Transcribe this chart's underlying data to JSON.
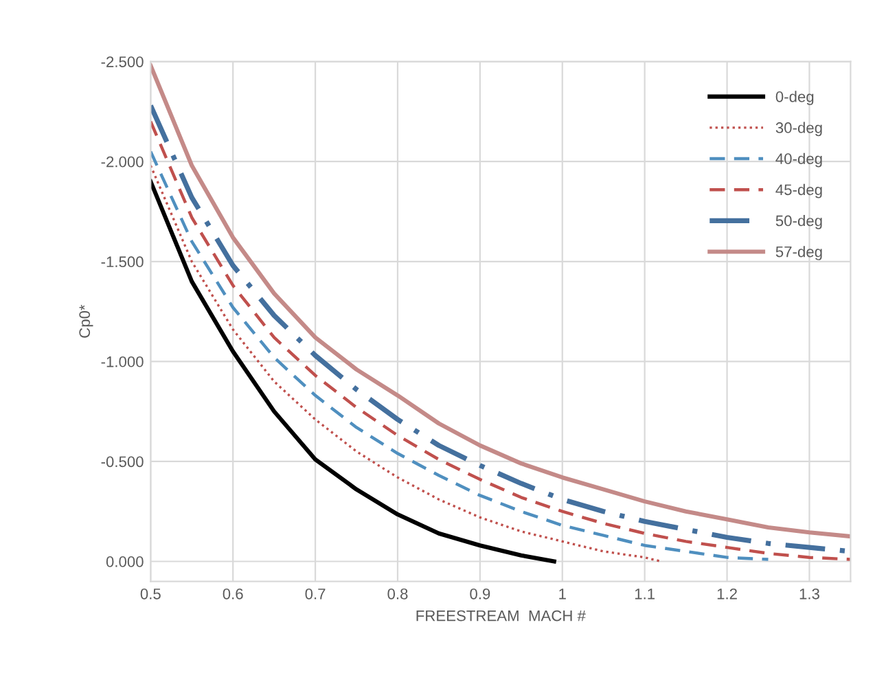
{
  "chart_data": {
    "type": "line",
    "xlabel": "FREESTREAM  MACH #",
    "ylabel": "Cp0*",
    "xlim": [
      0.5,
      1.35
    ],
    "ylim": [
      0.1,
      -2.5
    ],
    "xticks": [
      0.5,
      0.6,
      0.7,
      0.8,
      0.9,
      1,
      1.1,
      1.2,
      1.3
    ],
    "yticks": [
      {
        "value": 0,
        "label": "0.000"
      },
      {
        "value": -0.5,
        "label": "-0.500"
      },
      {
        "value": -1,
        "label": "-1.000"
      },
      {
        "value": -1.5,
        "label": "-1.500"
      },
      {
        "value": -2,
        "label": "-2.000"
      },
      {
        "value": -2.5,
        "label": "-2.500"
      }
    ],
    "grid": true,
    "legend": "top right",
    "marker": "none",
    "series": [
      {
        "name": "0-deg",
        "color": "#000000",
        "line_style": "solid",
        "x": [
          0.5,
          0.55,
          0.6,
          0.65,
          0.7,
          0.75,
          0.8,
          0.85,
          0.9,
          0.95,
          0.99
        ],
        "values": [
          -1.9,
          -1.4,
          -1.05,
          -0.75,
          -0.51,
          -0.36,
          -0.235,
          -0.14,
          -0.08,
          -0.03,
          0.0
        ]
      },
      {
        "name": "30-deg",
        "color": "#c0504d",
        "line_style": "dotted",
        "x": [
          0.5,
          0.55,
          0.6,
          0.65,
          0.7,
          0.75,
          0.8,
          0.85,
          0.9,
          0.95,
          1.0,
          1.05,
          1.1,
          1.12
        ],
        "values": [
          -1.98,
          -1.5,
          -1.16,
          -0.9,
          -0.71,
          -0.55,
          -0.42,
          -0.31,
          -0.22,
          -0.15,
          -0.1,
          -0.05,
          -0.02,
          0.0
        ]
      },
      {
        "name": "40-deg",
        "color": "#4f8fbf",
        "line_style": "dashed",
        "x": [
          0.5,
          0.55,
          0.6,
          0.65,
          0.7,
          0.75,
          0.8,
          0.85,
          0.9,
          0.95,
          1.0,
          1.05,
          1.1,
          1.15,
          1.2,
          1.25
        ],
        "values": [
          -2.05,
          -1.6,
          -1.27,
          -1.02,
          -0.83,
          -0.67,
          -0.54,
          -0.43,
          -0.33,
          -0.25,
          -0.18,
          -0.13,
          -0.08,
          -0.05,
          -0.02,
          -0.01
        ]
      },
      {
        "name": "45-deg",
        "color": "#c0504d",
        "line_style": "dashed",
        "x": [
          0.5,
          0.55,
          0.6,
          0.65,
          0.7,
          0.75,
          0.8,
          0.85,
          0.9,
          0.95,
          1.0,
          1.05,
          1.1,
          1.15,
          1.2,
          1.25,
          1.3,
          1.35
        ],
        "values": [
          -2.2,
          -1.72,
          -1.38,
          -1.12,
          -0.93,
          -0.77,
          -0.63,
          -0.51,
          -0.41,
          -0.32,
          -0.25,
          -0.19,
          -0.14,
          -0.1,
          -0.07,
          -0.04,
          -0.02,
          -0.01
        ]
      },
      {
        "name": "50-deg",
        "color": "#44709e",
        "line_style": "dashdot",
        "x": [
          0.5,
          0.55,
          0.6,
          0.65,
          0.7,
          0.75,
          0.8,
          0.85,
          0.9,
          0.95,
          1.0,
          1.05,
          1.1,
          1.15,
          1.2,
          1.25,
          1.3,
          1.35
        ],
        "values": [
          -2.28,
          -1.82,
          -1.48,
          -1.23,
          -1.03,
          -0.86,
          -0.71,
          -0.58,
          -0.48,
          -0.39,
          -0.31,
          -0.25,
          -0.2,
          -0.16,
          -0.12,
          -0.09,
          -0.07,
          -0.05
        ]
      },
      {
        "name": "57-deg",
        "color": "#c48a88",
        "line_style": "solid",
        "x": [
          0.5,
          0.55,
          0.6,
          0.65,
          0.7,
          0.75,
          0.8,
          0.85,
          0.9,
          0.95,
          1.0,
          1.05,
          1.1,
          1.15,
          1.2,
          1.25,
          1.3,
          1.35
        ],
        "values": [
          -2.48,
          -1.98,
          -1.62,
          -1.34,
          -1.12,
          -0.96,
          -0.83,
          -0.69,
          -0.58,
          -0.49,
          -0.42,
          -0.36,
          -0.3,
          -0.25,
          -0.21,
          -0.17,
          -0.145,
          -0.125
        ]
      }
    ]
  }
}
